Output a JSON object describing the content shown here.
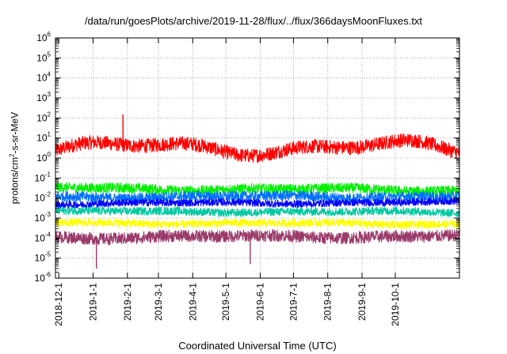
{
  "chart_data": {
    "type": "line",
    "title": "/data/run/goesPlots/archive/2019-11-28/flux/../flux/366daysMoonFluxes.txt",
    "xlabel": "Coordinated Universal Time (UTC)",
    "ylabel": {
      "prefix": "protons/cm",
      "exp": "2",
      "suffix": "-s-sr-MeV"
    },
    "yscale": "log",
    "ylim_exp": [
      -6,
      6
    ],
    "y_ticks": [
      {
        "base": "10",
        "exp": "-6"
      },
      {
        "base": "10",
        "exp": "-5"
      },
      {
        "base": "10",
        "exp": "-4"
      },
      {
        "base": "10",
        "exp": "-3"
      },
      {
        "base": "10",
        "exp": "-2"
      },
      {
        "base": "10",
        "exp": "-1"
      },
      {
        "base": "10",
        "exp": "0"
      },
      {
        "base": "10",
        "exp": "1"
      },
      {
        "base": "10",
        "exp": "2"
      },
      {
        "base": "10",
        "exp": "3"
      },
      {
        "base": "10",
        "exp": "4"
      },
      {
        "base": "10",
        "exp": "5"
      },
      {
        "base": "10",
        "exp": "6"
      }
    ],
    "xlim": [
      "2018-11-28",
      "2019-11-28"
    ],
    "x_ticks": [
      "2018-12-1",
      "2019-1-1",
      "2019-2-1",
      "2019-3-1",
      "2019-4-1",
      "2019-5-1",
      "2019-6-1",
      "2019-7-1",
      "2019-8-1",
      "2019-9-1",
      "2019-10-1"
    ],
    "grid": true,
    "series": [
      {
        "color": "#ff0000",
        "log10_center": 0.35,
        "log10_spread": 0.55,
        "noise": 0.35,
        "spikes": [
          {
            "date": "2019-1-28",
            "value": 150
          }
        ]
      },
      {
        "color": "#00ee00",
        "log10_center": -1.55,
        "log10_spread": 0.12,
        "noise": 0.25
      },
      {
        "color": "#0070ff",
        "log10_center": -1.9,
        "log10_spread": 0.1,
        "noise": 0.25
      },
      {
        "color": "#0000ff",
        "log10_center": -2.25,
        "log10_spread": 0.08,
        "noise": 0.18
      },
      {
        "color": "#00c8a0",
        "log10_center": -2.7,
        "log10_spread": 0.08,
        "noise": 0.2
      },
      {
        "color": "#ffff00",
        "log10_center": -3.25,
        "log10_spread": 0.08,
        "noise": 0.2
      },
      {
        "color": "#9a3a6a",
        "log10_center": -3.9,
        "log10_spread": 0.12,
        "noise": 0.3,
        "spikes": [
          {
            "date": "2019-1-4",
            "value": 3e-06
          },
          {
            "date": "2019-5-23",
            "value": 5e-06
          }
        ]
      }
    ]
  }
}
